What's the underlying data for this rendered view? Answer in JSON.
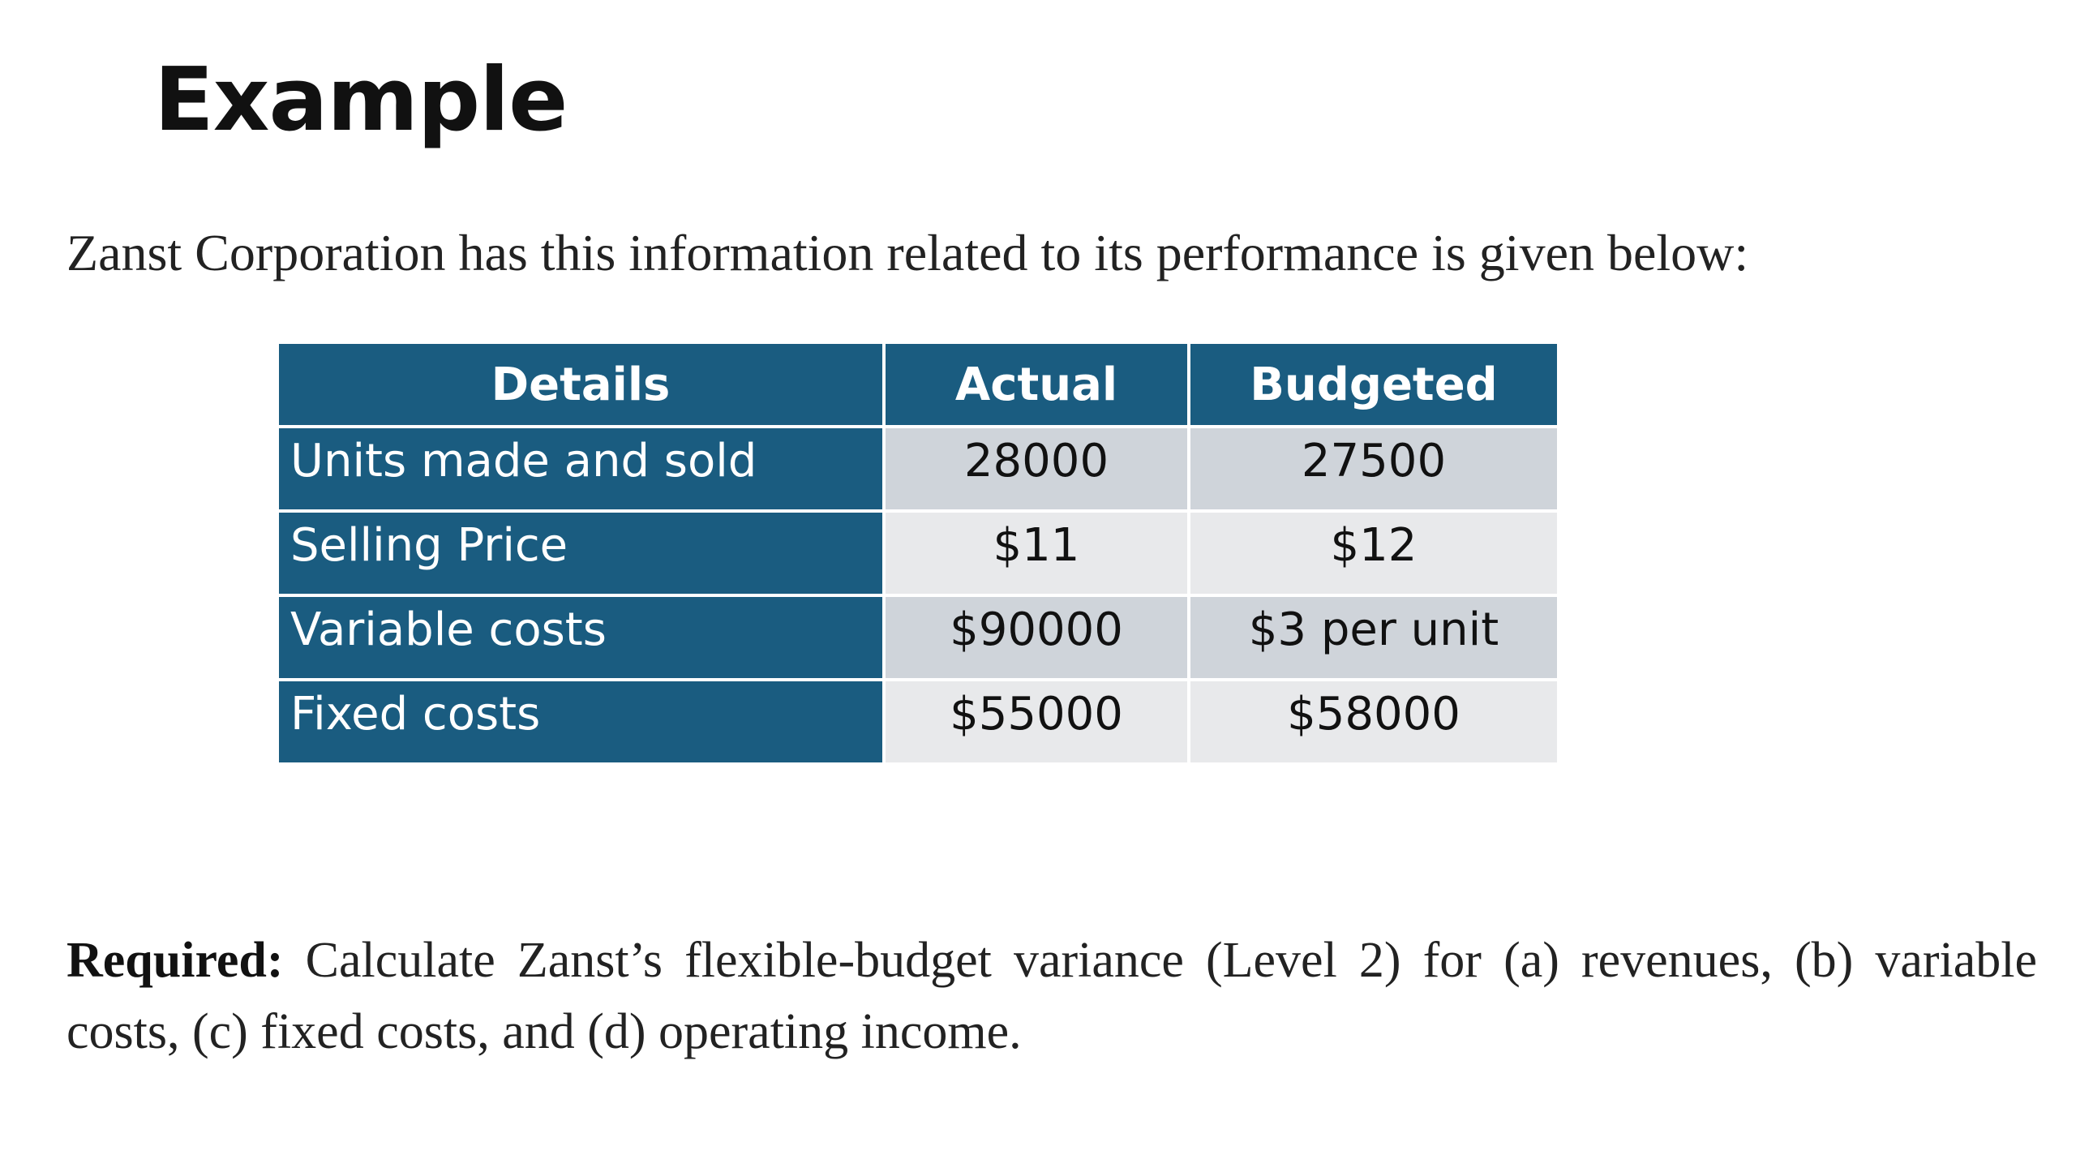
{
  "slide": {
    "title": "Example",
    "intro": "Zanst Corporation has this information related to its performance is given below:",
    "table": {
      "headers": [
        "Details",
        "Actual",
        "Budgeted"
      ],
      "rows": [
        {
          "label": "Units made and sold",
          "actual": "28000",
          "budgeted": "27500"
        },
        {
          "label": "Selling Price",
          "actual": "$11",
          "budgeted": "$12"
        },
        {
          "label": "Variable costs",
          "actual": "$90000",
          "budgeted": "$3 per unit"
        },
        {
          "label": "Fixed costs",
          "actual": "$55000",
          "budgeted": "$58000"
        }
      ]
    },
    "required_label": "Required:",
    "required_text": "Calculate Zanst’s flexible-budget variance (Level 2) for (a) revenues, (b) variable costs, (c) fixed costs, and (d) operating income."
  },
  "colors": {
    "header_bg": "#1a5c80",
    "cell_dark": "#cfd4da",
    "cell_light": "#e8e9eb"
  }
}
